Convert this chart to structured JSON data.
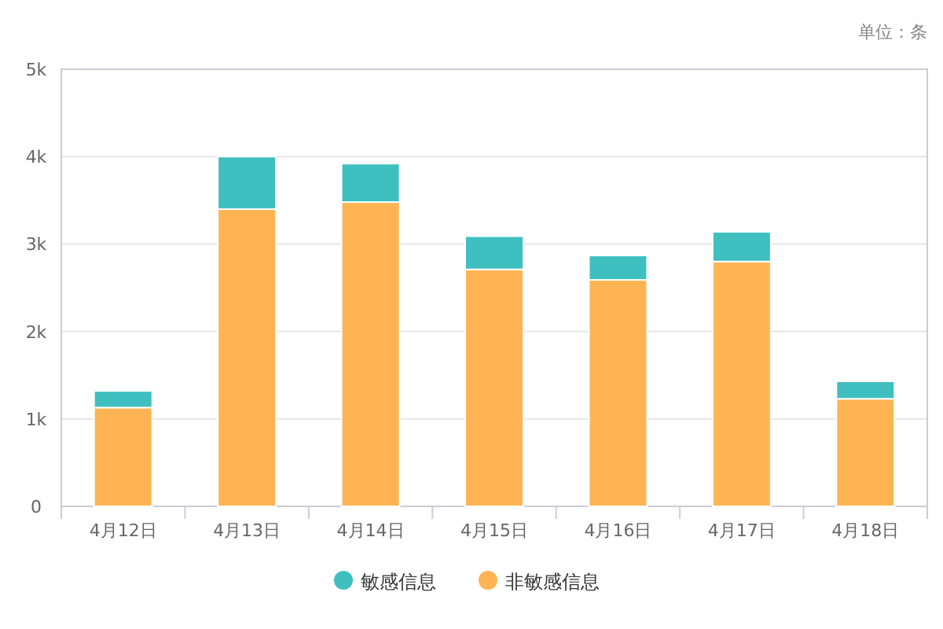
{
  "chart_data": {
    "type": "bar",
    "stacked": true,
    "categories": [
      "4月12日",
      "4月13日",
      "4月14日",
      "4月15日",
      "4月16日",
      "4月17日",
      "4月18日"
    ],
    "series": [
      {
        "name": "非敏感信息",
        "color": "#ffb454",
        "values": [
          1130,
          3400,
          3480,
          2710,
          2590,
          2800,
          1230
        ]
      },
      {
        "name": "敏感信息",
        "color": "#3fbfbf",
        "values": [
          190,
          600,
          440,
          380,
          280,
          340,
          200
        ]
      }
    ],
    "ylim": [
      0,
      5000
    ],
    "yticks": [
      {
        "value": 0,
        "label": "0"
      },
      {
        "value": 1000,
        "label": "1k"
      },
      {
        "value": 2000,
        "label": "2k"
      },
      {
        "value": 3000,
        "label": "3k"
      },
      {
        "value": 4000,
        "label": "4k"
      },
      {
        "value": 5000,
        "label": "5k"
      }
    ],
    "grid": "y",
    "legend": "bottom",
    "annotations": [
      "单位：条"
    ]
  }
}
